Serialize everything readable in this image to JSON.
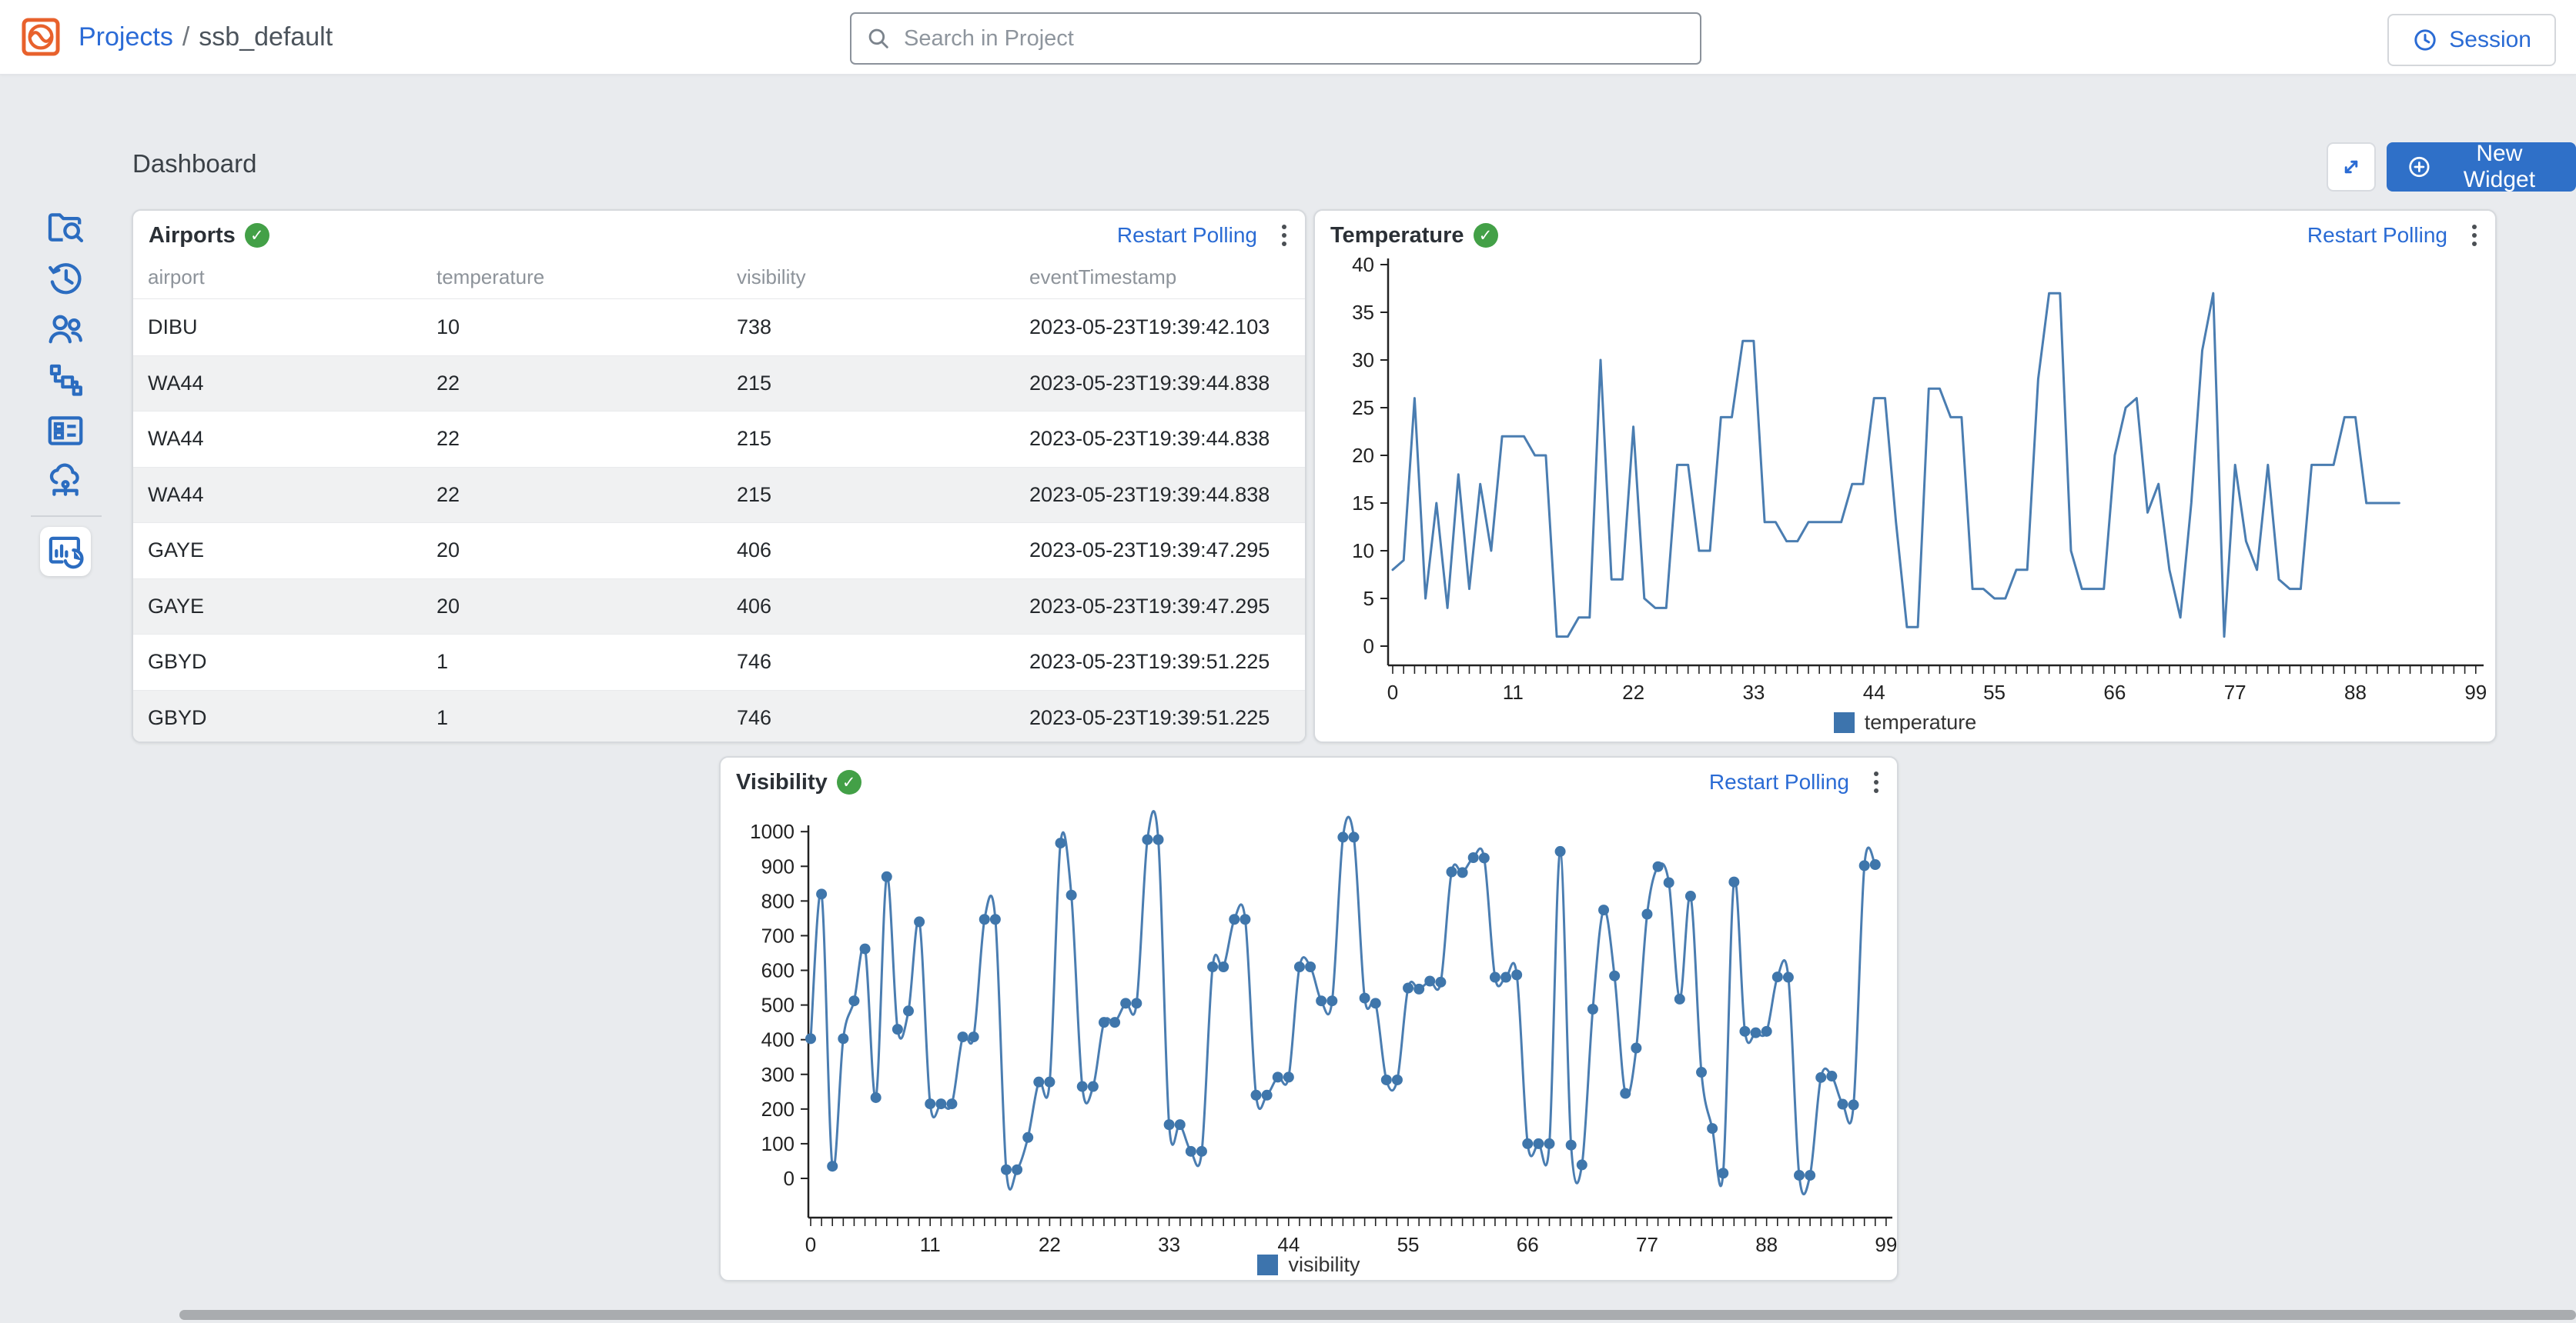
{
  "topbar": {
    "logo_icon": "ssb-logo-icon",
    "breadcrumb": {
      "root": "Projects",
      "separator": "/",
      "current": "ssb_default"
    },
    "search": {
      "placeholder": "Search in Project",
      "icon": "search-icon"
    },
    "session": {
      "label": "Session",
      "icon": "clock-icon"
    }
  },
  "sidebar": {
    "items": [
      {
        "name": "project-explorer",
        "icon": "folder-search-icon"
      },
      {
        "name": "history",
        "icon": "history-clock-icon"
      },
      {
        "name": "users",
        "icon": "users-icon"
      },
      {
        "name": "jobs-flow",
        "icon": "flow-tree-icon"
      },
      {
        "name": "console",
        "icon": "panel-grid-icon"
      },
      {
        "name": "data-sources",
        "icon": "cloud-network-icon"
      },
      {
        "name": "dashboard",
        "icon": "dashboard-chart-icon",
        "active": true
      }
    ]
  },
  "page": {
    "title": "Dashboard",
    "expand_icon": "expand-arrows-icon",
    "new_widget_label": "New Widget"
  },
  "widgets": {
    "airports": {
      "title": "Airports",
      "status_icon": "green-check-icon",
      "restart_label": "Restart Polling",
      "menu_icon": "kebab-menu-icon",
      "table": {
        "columns": [
          "airport",
          "temperature",
          "visibility",
          "eventTimestamp"
        ],
        "rows": [
          [
            "DIBU",
            "10",
            "738",
            "2023-05-23T19:39:42.103"
          ],
          [
            "WA44",
            "22",
            "215",
            "2023-05-23T19:39:44.838"
          ],
          [
            "WA44",
            "22",
            "215",
            "2023-05-23T19:39:44.838"
          ],
          [
            "WA44",
            "22",
            "215",
            "2023-05-23T19:39:44.838"
          ],
          [
            "GAYE",
            "20",
            "406",
            "2023-05-23T19:39:47.295"
          ],
          [
            "GAYE",
            "20",
            "406",
            "2023-05-23T19:39:47.295"
          ],
          [
            "GBYD",
            "1",
            "746",
            "2023-05-23T19:39:51.225"
          ],
          [
            "GBYD",
            "1",
            "746",
            "2023-05-23T19:39:51.225"
          ]
        ]
      }
    },
    "temperature": {
      "title": "Temperature",
      "status_icon": "green-check-icon",
      "restart_label": "Restart Polling",
      "menu_icon": "kebab-menu-icon",
      "legend": "temperature"
    },
    "visibility": {
      "title": "Visibility",
      "status_icon": "green-check-icon",
      "restart_label": "Restart Polling",
      "menu_icon": "kebab-menu-icon",
      "legend": "visibility"
    }
  },
  "colors": {
    "accent_blue": "#2a6bd4",
    "button_blue": "#2f70c8",
    "sidebar_icon_blue": "#2b6cc0",
    "logo_orange": "#e8612c",
    "status_green": "#43a047",
    "series_line": "#4a7db1",
    "series_marker": "#3f76ab",
    "legend_swatch": "#3d74ad",
    "axis": "#222222",
    "page_bg": "#e9ebee"
  },
  "chart_data": [
    {
      "id": "temperature",
      "type": "line",
      "title": "Temperature",
      "legend": "temperature",
      "smooth": false,
      "markers": false,
      "xlim": [
        0,
        99
      ],
      "x_labels": [
        0,
        11,
        22,
        33,
        44,
        55,
        66,
        77,
        88,
        99
      ],
      "ylim": [
        0,
        40
      ],
      "y_step": 5,
      "grid": false,
      "legend_position": "bottom",
      "values": [
        8,
        9,
        26,
        5,
        15,
        4,
        18,
        6,
        17,
        10,
        22,
        22,
        22,
        20,
        20,
        1,
        1,
        3,
        3,
        30,
        7,
        7,
        23,
        5,
        4,
        4,
        19,
        19,
        10,
        10,
        24,
        24,
        32,
        32,
        13,
        13,
        11,
        11,
        13,
        13,
        13,
        13,
        17,
        17,
        26,
        26,
        13,
        2,
        2,
        27,
        27,
        24,
        24,
        6,
        6,
        5,
        5,
        8,
        8,
        28,
        37,
        37,
        10,
        6,
        6,
        6,
        20,
        25,
        26,
        14,
        17,
        8,
        3,
        15,
        31,
        37,
        1,
        19,
        11,
        8,
        19,
        7,
        6,
        6,
        19,
        19,
        19,
        24,
        24,
        15,
        15,
        15,
        15
      ]
    },
    {
      "id": "visibility",
      "type": "line",
      "title": "Visibility",
      "legend": "visibility",
      "smooth": true,
      "markers": true,
      "xlim": [
        0,
        99
      ],
      "x_labels": [
        0,
        11,
        22,
        33,
        44,
        55,
        66,
        77,
        88,
        99
      ],
      "ylim": [
        0,
        1000
      ],
      "y_step": 100,
      "grid": false,
      "legend_position": "bottom",
      "values": [
        403,
        820,
        35,
        403,
        512,
        662,
        233,
        870,
        430,
        483,
        740,
        215,
        215,
        215,
        408,
        408,
        747,
        747,
        25,
        25,
        118,
        278,
        278,
        967,
        817,
        265,
        265,
        450,
        450,
        505,
        505,
        977,
        977,
        155,
        155,
        78,
        78,
        610,
        610,
        747,
        747,
        240,
        240,
        292,
        292,
        610,
        610,
        512,
        512,
        984,
        984,
        520,
        505,
        284,
        284,
        549,
        546,
        569,
        566,
        884,
        882,
        925,
        924,
        580,
        580,
        587,
        100,
        100,
        100,
        943,
        96,
        39,
        488,
        774,
        584,
        245,
        376,
        762,
        899,
        853,
        517,
        814,
        306,
        144,
        15,
        855,
        424,
        420,
        424,
        581,
        580,
        9,
        9,
        291,
        295,
        214,
        212,
        902,
        905
      ]
    }
  ]
}
